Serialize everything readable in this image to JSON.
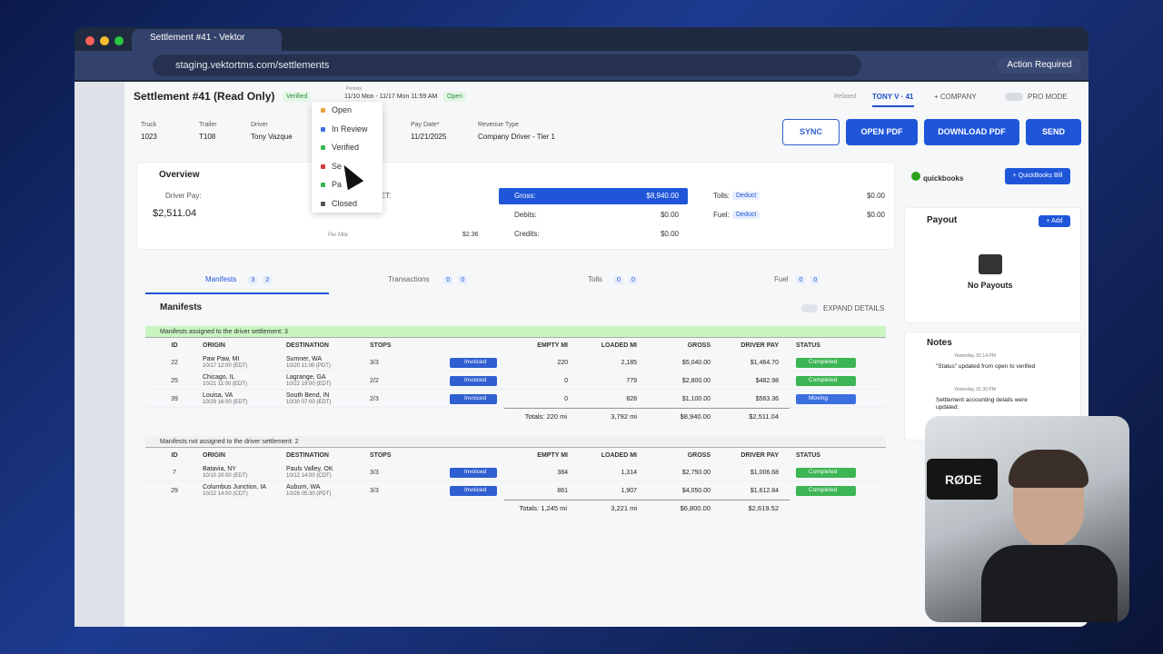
{
  "browser": {
    "tab_title": "Settlement #41 - Vektor",
    "url": "staging.vektortms.com/settlements",
    "action_required": "Action Required"
  },
  "header": {
    "title": "Settlement #41 (Read Only)",
    "status": "Verified",
    "period_label": "Periods",
    "period": "11/10 Mon - 11/17 Mon 11:59 AM",
    "period_status": "Open",
    "related_label": "Related",
    "related_driver": "TONY V · 41",
    "company": "+ COMPANY",
    "pro_mode": "PRO MODE"
  },
  "status_menu": [
    "Open",
    "In Review",
    "Verified",
    "Se",
    "Pa",
    "Closed"
  ],
  "fields": [
    {
      "label": "Truck",
      "value": "1023"
    },
    {
      "label": "Trailer",
      "value": "T108"
    },
    {
      "label": "Driver",
      "value": "Tony Vazque"
    },
    {
      "label": "Pay Date*",
      "value": "11/21/2025"
    },
    {
      "label": "Revenue Type",
      "value": "Company Driver - Tier 1"
    }
  ],
  "actions": [
    "SYNC",
    "OPEN PDF",
    "DOWNLOAD PDF",
    "SEND"
  ],
  "overview": {
    "title": "Overview",
    "driver_pay_label": "Driver Pay:",
    "driver_pay": "$2,511.04",
    "net_label": "NET:",
    "per_mile_label": "Per Mile",
    "per_mile": "$2.36",
    "items": [
      {
        "label": "Gross:",
        "value": "$8,940.00"
      },
      {
        "label": "Debits:",
        "value": "$0.00"
      },
      {
        "label": "Credits:",
        "value": "$0.00"
      },
      {
        "label": "Tolls:",
        "tag": "Deduct",
        "value": "$0.00"
      },
      {
        "label": "Fuel:",
        "tag": "Deduct",
        "value": "$0.00"
      }
    ]
  },
  "tabs": [
    {
      "label": "Manifests",
      "counts": [
        "3",
        "2"
      ]
    },
    {
      "label": "Transactions",
      "counts": [
        "0",
        "0"
      ]
    },
    {
      "label": "Tolls",
      "counts": [
        "0",
        "0"
      ]
    },
    {
      "label": "Fuel",
      "counts": [
        "0",
        "0"
      ]
    }
  ],
  "manifests": {
    "title": "Manifests",
    "expand": "EXPAND DETAILS",
    "columns": [
      "ID",
      "ORIGIN",
      "DESTINATION",
      "STOPS",
      "EMPTY MI",
      "LOADED MI",
      "GROSS",
      "DRIVER PAY",
      "STATUS"
    ],
    "status_colors": {
      "Completed": "#3cb554",
      "Moving": "#3b6fe0"
    },
    "sections": [
      {
        "caption": "Manifests assigned to the driver settlement: 3",
        "rows": [
          [
            "22",
            "Paw Paw, MI",
            "10/17 12:00 (EDT)",
            "Sumner, WA",
            "10/20 11:00 (PDT)",
            "3/3",
            "Invoiced",
            "220",
            "2,185",
            "$5,040.00",
            "$1,464.70",
            "Completed"
          ],
          [
            "25",
            "Chicago, IL",
            "10/21 11:00 (EDT)",
            "Lagrange, GA",
            "10/22 19:00 (EDT)",
            "2/2",
            "Invoiced",
            "0",
            "779",
            "$2,800.00",
            "$482.98",
            "Completed"
          ],
          [
            "39",
            "Louisa, VA",
            "10/29 16:00 (EDT)",
            "South Bend, IN",
            "10/30 07:00 (EDT)",
            "2/3",
            "Invoiced",
            "0",
            "828",
            "$1,100.00",
            "$563.36",
            "Moving"
          ]
        ],
        "totals": [
          "Totals: 220 mi",
          "3,792 mi",
          "$8,940.00",
          "$2,511.04"
        ]
      },
      {
        "caption": "Manifests not assigned to the driver settlement: 2",
        "rows": [
          [
            "7",
            "Batavia, NY",
            "10/10 20:00 (EDT)",
            "Pauls Valley, OK",
            "10/12 14:00 (CDT)",
            "3/3",
            "Invoiced",
            "384",
            "1,314",
            "$2,750.00",
            "$1,006.68",
            "Completed"
          ],
          [
            "29",
            "Columbus Junction, IA",
            "10/22 14:00 (CDT)",
            "Auburn, WA",
            "10/26 05:30 (PDT)",
            "3/3",
            "Invoiced",
            "861",
            "1,907",
            "$4,050.00",
            "$1,612.84",
            "Completed"
          ]
        ],
        "totals": [
          "Totals: 1,245 mi",
          "3,221 mi",
          "$6,800.00",
          "$2,619.52"
        ]
      }
    ]
  },
  "sidebar": {
    "quickbooks": "quickbooks",
    "qb_button": "+ QuickBooks Bill",
    "payout_title": "Payout",
    "add": "+ Add",
    "no_payouts": "No Payouts",
    "notes_title": "Notes",
    "notes": [
      {
        "time": "Yesterday, 01:14 PM",
        "text": "\"Status\" updated from open to verified"
      },
      {
        "time": "Yesterday, 01:30 PM",
        "text": "Settlement accounting details were updated:"
      }
    ]
  },
  "webcam": {
    "mic_brand": "RØDE"
  }
}
